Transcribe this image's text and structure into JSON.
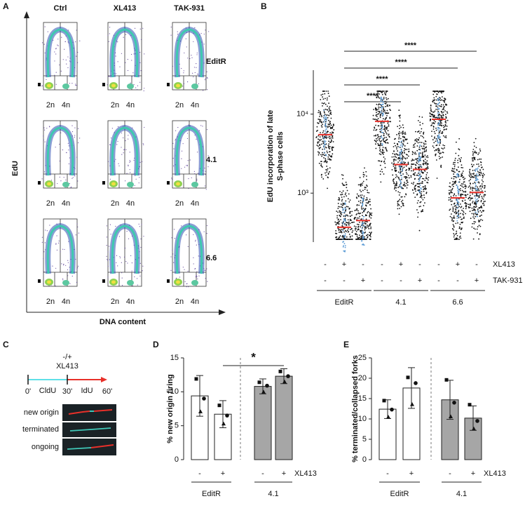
{
  "panel_labels": [
    "A",
    "B",
    "C",
    "D",
    "E"
  ],
  "flow": {
    "columns": [
      "Ctrl",
      "XL413",
      "TAK-931"
    ],
    "rows": [
      "EditR",
      "4.1",
      "6.6"
    ],
    "x_axis_label": "DNA content",
    "y_axis_label": "EdU",
    "x_ticks": [
      "2n",
      "4n"
    ]
  },
  "labeling": {
    "treatment": [
      "-/+",
      "XL413"
    ],
    "times": [
      "0'",
      "30'",
      "60'"
    ],
    "labels": [
      "CldU",
      "IdU"
    ],
    "fibers": [
      "new origin",
      "terminated",
      "ongoing"
    ]
  },
  "chart_data": [
    {
      "type": "dot",
      "ylabel": [
        "EdU incorporation of late",
        "S-phase cells"
      ],
      "values": [
        5500,
        370,
        450,
        8100,
        2300,
        2000,
        8600,
        870,
        1020
      ],
      "color": "#e8302a",
      "log": true,
      "ylim": [
        240,
        36000
      ],
      "yticks": [
        {
          "value": 1000,
          "label": "10³"
        },
        {
          "value": 10000,
          "label": "10⁴"
        }
      ],
      "conditions": [
        {
          "name": "XL413",
          "values": [
            "-",
            "+",
            "-",
            "-",
            "+",
            "-",
            "-",
            "+",
            "-"
          ]
        },
        {
          "name": "TAK-931",
          "values": [
            "-",
            "-",
            "+",
            "-",
            "-",
            "+",
            "-",
            "-",
            "+"
          ]
        }
      ],
      "groups": [
        "EditR",
        "4.1",
        "6.6"
      ],
      "significance": [
        {
          "from": 1,
          "to": 4,
          "label": "****"
        },
        {
          "from": 1,
          "to": 5,
          "label": "****"
        },
        {
          "from": 1,
          "to": 7,
          "label": "****"
        },
        {
          "from": 1,
          "to": 8,
          "label": "****"
        }
      ]
    },
    {
      "type": "bar",
      "ylabel": [
        "% new origin firing"
      ],
      "values": [
        9.4,
        6.7,
        10.8,
        12.3
      ],
      "errors": [
        3.0,
        2.0,
        1.1,
        1.1
      ],
      "points": [
        [
          11.9,
          9.0,
          7.1
        ],
        [
          8.0,
          6.5,
          5.3
        ],
        [
          11.4,
          10.9,
          10.0
        ],
        [
          13.0,
          12.3,
          11.5
        ]
      ],
      "colors": [
        "#ffffff",
        "#ffffff",
        "#a6a6a6",
        "#a6a6a6"
      ],
      "ylim": [
        0,
        15
      ],
      "yticks": [
        0,
        5,
        10,
        15
      ],
      "conditions": [
        {
          "name": "XL413",
          "values": [
            "-",
            "+",
            "-",
            "+"
          ]
        }
      ],
      "groups": [
        "EditR",
        "4.1"
      ],
      "significance": [
        {
          "from": 1,
          "to": 3,
          "label": "*"
        }
      ]
    },
    {
      "type": "bar",
      "ylabel": [
        "% terminated/collapsed forks"
      ],
      "values": [
        12.4,
        17.6,
        14.7,
        10.2
      ],
      "errors": [
        2.3,
        5.0,
        4.8,
        3.0
      ],
      "points": [
        [
          14.5,
          12.3,
          10.5
        ],
        [
          20.2,
          18.8,
          13.6
        ],
        [
          19.6,
          14.0,
          10.6
        ],
        [
          13.5,
          9.5,
          7.6
        ]
      ],
      "colors": [
        "#ffffff",
        "#ffffff",
        "#a6a6a6",
        "#a6a6a6"
      ],
      "ylim": [
        0,
        25
      ],
      "yticks": [
        0,
        5,
        10,
        15,
        20,
        25
      ],
      "conditions": [
        {
          "name": "XL413",
          "values": [
            "-",
            "+",
            "-",
            "+"
          ]
        }
      ],
      "groups": [
        "EditR",
        "4.1"
      ]
    }
  ]
}
